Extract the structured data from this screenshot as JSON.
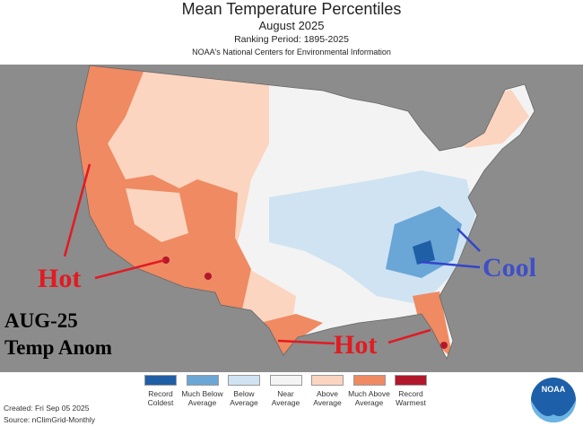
{
  "header": {
    "title": "Mean Temperature Percentiles",
    "subtitle": "August 2025",
    "ranking_period": "Ranking Period: 1895-2025",
    "organization": "NOAA's National Centers for Environmental Information"
  },
  "annotations": {
    "hot_west": "Hot",
    "cool": "Cool",
    "hot_south": "Hot",
    "period": "AUG-25",
    "label": "Temp Anom"
  },
  "legend": [
    {
      "label": "Record Coldest",
      "color": "#1f5fa6"
    },
    {
      "label": "Much Below Average",
      "color": "#6aa6d6"
    },
    {
      "label": "Below Average",
      "color": "#cfe3f2"
    },
    {
      "label": "Near Average",
      "color": "#f4f4f4"
    },
    {
      "label": "Above Average",
      "color": "#fbd5c0"
    },
    {
      "label": "Much Above Average",
      "color": "#ef8a62"
    },
    {
      "label": "Record Warmest",
      "color": "#b2182b"
    }
  ],
  "footer": {
    "created": "Created: Fri Sep 05 2025",
    "source": "Source: nClimGrid-Monthly"
  },
  "logo": "NOAA"
}
